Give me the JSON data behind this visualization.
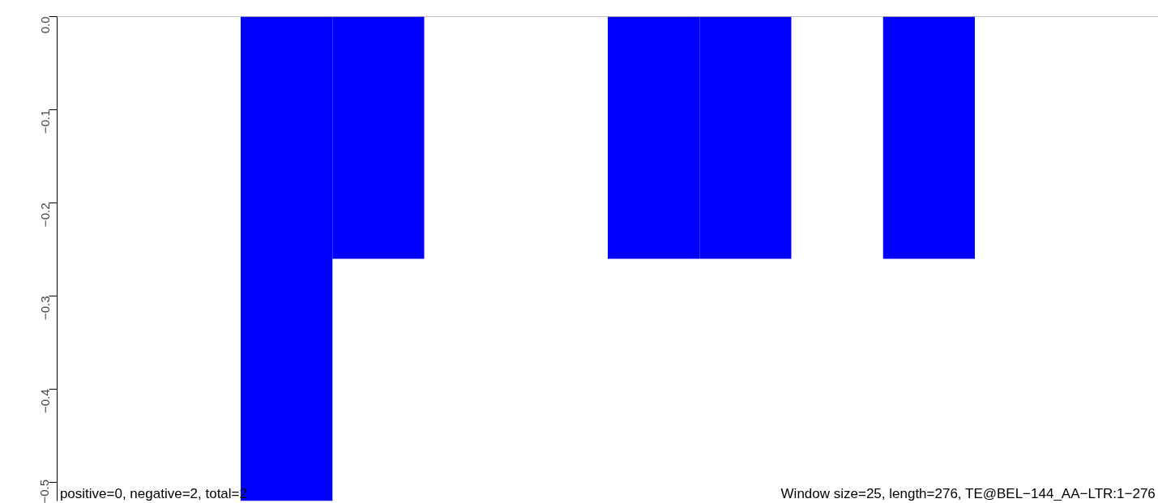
{
  "chart_data": {
    "type": "bar",
    "categories": [
      null,
      null,
      null,
      null,
      null,
      null,
      null,
      null,
      null,
      null,
      null,
      null
    ],
    "values": [
      0,
      0,
      -0.52,
      -0.26,
      0,
      0,
      -0.26,
      -0.26,
      0,
      -0.26,
      0,
      0
    ],
    "color": "#0000ff",
    "ylim": [
      -0.52,
      0
    ],
    "yticks": [
      {
        "value": 0,
        "label": "0.0"
      },
      {
        "value": -0.1,
        "label": "−0.1"
      },
      {
        "value": -0.2,
        "label": "−0.2"
      },
      {
        "value": -0.3,
        "label": "−0.3"
      },
      {
        "value": -0.4,
        "label": "−0.4"
      },
      {
        "value": -0.5,
        "label": "−0.5"
      }
    ],
    "ref_lines": [
      {
        "axis": "y",
        "value": 0,
        "color": "#808080"
      }
    ],
    "annotations": [
      "positive=0, negative=2, total=2",
      "Window size=25, length=276, TE@BEL−144_AA−LTR:1−276"
    ],
    "grid": false,
    "tick_labels": "y"
  }
}
